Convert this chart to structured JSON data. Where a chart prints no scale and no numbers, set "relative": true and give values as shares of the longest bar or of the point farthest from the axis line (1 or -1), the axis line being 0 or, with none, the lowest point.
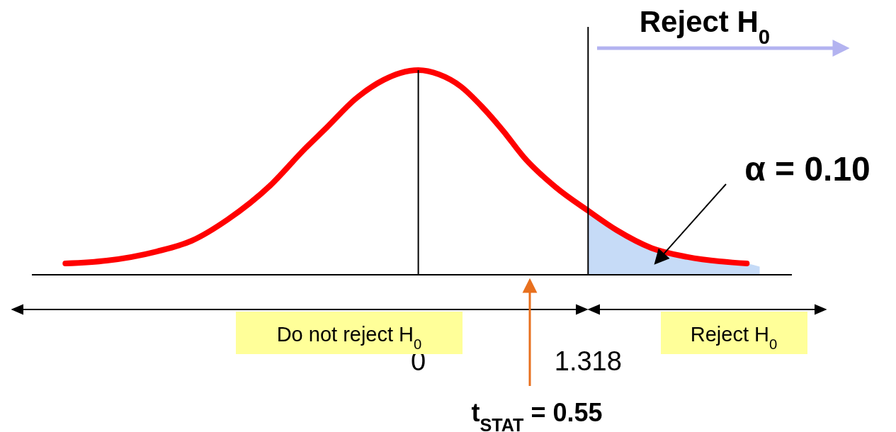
{
  "chart_data": {
    "type": "line",
    "relative": true,
    "xlim": [
      -3.0,
      2.9
    ],
    "xticks": [
      0,
      1.318
    ],
    "series": [
      {
        "color": "#ff0000",
        "x": [
          -2.74,
          -2.42,
          -2.03,
          -1.76,
          -1.48,
          -1.15,
          -0.88,
          -0.71,
          -0.49,
          -0.27,
          -0.14,
          0,
          0.16,
          0.33,
          0.49,
          0.66,
          0.82,
          1.07,
          1.32,
          1.54,
          1.81,
          2.09,
          2.55
        ],
        "values": [
          0.055,
          0.069,
          0.114,
          0.166,
          0.27,
          0.436,
          0.616,
          0.72,
          0.858,
          0.952,
          0.986,
          1,
          0.979,
          0.92,
          0.824,
          0.702,
          0.574,
          0.426,
          0.312,
          0.218,
          0.131,
          0.087,
          0.055
        ]
      },
      {
        "type": "area",
        "color": "#c6dbf7",
        "x": [
          1.318,
          1.54,
          1.81,
          2.09,
          2.55,
          2.65
        ],
        "values": [
          0.312,
          0.218,
          0.131,
          0.087,
          0.055,
          0.04
        ]
      }
    ],
    "ref_lines": [
      {
        "axis": "x",
        "value": 0
      },
      {
        "axis": "x",
        "value": 1.318
      }
    ],
    "annotations": [
      "Reject H$_{0}$",
      "Do not reject H$_{0}$",
      "Reject H$_{0}$",
      "t$_{STAT}$ = 0.55",
      "α = 0.10"
    ]
  }
}
